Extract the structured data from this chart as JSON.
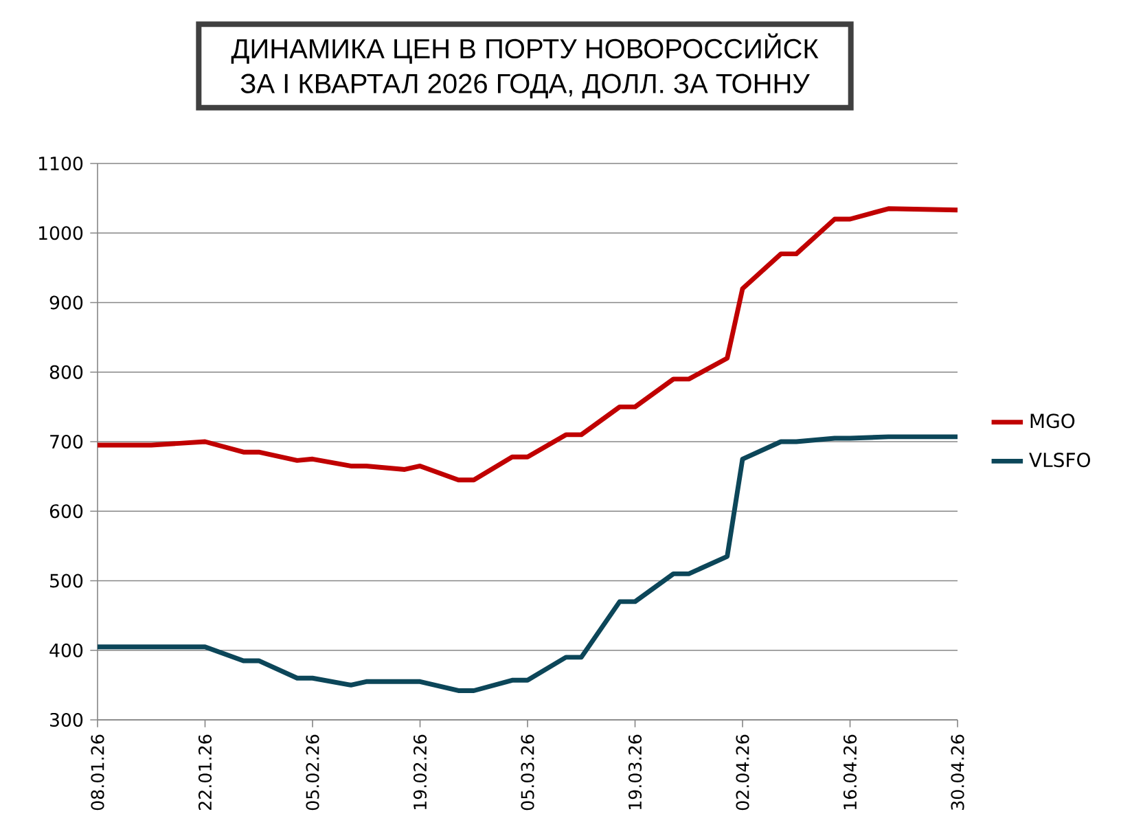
{
  "chart_data": {
    "type": "line",
    "title": "ДИНАМИКА ЦЕН В ПОРТУ НОВОРОССИЙСК\nЗА I КВАРТАЛ 2026 ГОДА, ДОЛЛ. ЗА ТОННУ",
    "x": [
      "2026-01-08",
      "2026-01-15",
      "2026-01-22",
      "2026-01-27",
      "2026-01-29",
      "2026-02-03",
      "2026-02-05",
      "2026-02-10",
      "2026-02-12",
      "2026-02-17",
      "2026-02-19",
      "2026-02-24",
      "2026-02-26",
      "2026-03-03",
      "2026-03-05",
      "2026-03-10",
      "2026-03-12",
      "2026-03-17",
      "2026-03-19",
      "2026-03-24",
      "2026-03-26",
      "2026-03-31",
      "2026-04-02",
      "2026-04-07",
      "2026-04-09",
      "2026-04-14",
      "2026-04-16",
      "2026-04-21",
      "2026-04-30"
    ],
    "series": [
      {
        "name": "MGO",
        "color": "#c00000",
        "values": [
          695,
          695,
          700,
          685,
          685,
          673,
          675,
          665,
          665,
          660,
          665,
          645,
          645,
          678,
          678,
          710,
          710,
          750,
          750,
          790,
          790,
          820,
          920,
          970,
          970,
          1020,
          1020,
          1035,
          1033
        ]
      },
      {
        "name": "VLSFO",
        "color": "#0c4659",
        "values": [
          405,
          405,
          405,
          385,
          385,
          360,
          360,
          350,
          355,
          355,
          355,
          342,
          342,
          357,
          357,
          390,
          390,
          470,
          470,
          510,
          510,
          535,
          675,
          700,
          700,
          705,
          705,
          707,
          707
        ]
      }
    ],
    "xlim": [
      "2026-01-08",
      "2026-04-30"
    ],
    "xticks": [
      {
        "value": "2026-01-08",
        "label": "08.01.26"
      },
      {
        "value": "2026-01-22",
        "label": "22.01.26"
      },
      {
        "value": "2026-02-05",
        "label": "05.02.26"
      },
      {
        "value": "2026-02-19",
        "label": "19.02.26"
      },
      {
        "value": "2026-03-05",
        "label": "05.03.26"
      },
      {
        "value": "2026-03-19",
        "label": "19.03.26"
      },
      {
        "value": "2026-04-02",
        "label": "02.04.26"
      },
      {
        "value": "2026-04-16",
        "label": "16.04.26"
      },
      {
        "value": "2026-04-30",
        "label": "30.04.26"
      }
    ],
    "ylim": [
      300,
      1100
    ],
    "yticks": [
      300,
      400,
      500,
      600,
      700,
      800,
      900,
      1000,
      1100
    ],
    "grid": "y",
    "legend": "right",
    "marker": "none",
    "line_style": "solid"
  }
}
